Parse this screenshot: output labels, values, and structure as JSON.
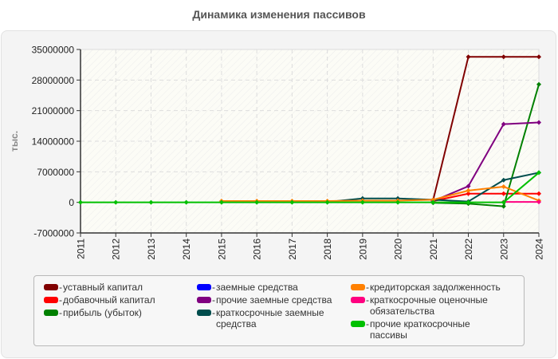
{
  "chart_data": {
    "type": "line",
    "title": "Динамика изменения пассивов",
    "xlabel": "",
    "ylabel": "тыс.",
    "ylim": [
      -7000000,
      35000000
    ],
    "yticks": [
      35000000,
      28000000,
      21000000,
      14000000,
      7000000,
      0,
      -7000000
    ],
    "ytick_labels": [
      "35000000",
      "28000000",
      "21000000",
      "14000000",
      "7000000",
      "0",
      "-7000000"
    ],
    "grid": true,
    "legend_position": "bottom",
    "x": [
      "2011",
      "2012",
      "2013",
      "2014",
      "2015",
      "2016",
      "2017",
      "2018",
      "2019",
      "2020",
      "2021",
      "2022",
      "2023",
      "2024"
    ],
    "series": [
      {
        "name": "уставный капитал",
        "color": "#800000",
        "values": [
          null,
          null,
          null,
          null,
          null,
          null,
          null,
          null,
          null,
          null,
          500000,
          33300000,
          33300000,
          33300000
        ]
      },
      {
        "name": "добавочный капитал",
        "color": "#ff0000",
        "values": [
          null,
          null,
          null,
          null,
          null,
          null,
          null,
          null,
          null,
          null,
          300000,
          2000000,
          2000000,
          2000000
        ]
      },
      {
        "name": "прибыль (убыток)",
        "color": "#008000",
        "values": [
          null,
          null,
          null,
          null,
          null,
          null,
          null,
          null,
          null,
          null,
          -100000,
          -300000,
          -900000,
          27000000
        ]
      },
      {
        "name": "заемные средства",
        "color": "#0000ff",
        "values": [
          null,
          null,
          null,
          null,
          null,
          null,
          null,
          null,
          null,
          null,
          null,
          null,
          null,
          null
        ]
      },
      {
        "name": "прочие заемные средства",
        "color": "#800080",
        "values": [
          null,
          null,
          null,
          null,
          null,
          null,
          null,
          null,
          null,
          null,
          300000,
          3700000,
          17900000,
          18300000
        ]
      },
      {
        "name": "краткосрочные заемные средства",
        "color": "#004d4d",
        "values": [
          null,
          null,
          null,
          null,
          null,
          null,
          null,
          100000,
          900000,
          900000,
          600000,
          200000,
          5100000,
          6800000
        ]
      },
      {
        "name": "кредиторская задолженность",
        "color": "#ff8000",
        "values": [
          null,
          null,
          null,
          null,
          300000,
          300000,
          300000,
          300000,
          400000,
          400000,
          600000,
          2700000,
          3600000,
          400000
        ]
      },
      {
        "name": "краткосрочные оценочные обязательства",
        "color": "#ff0080",
        "values": [
          null,
          null,
          null,
          null,
          null,
          null,
          null,
          null,
          null,
          null,
          null,
          null,
          100000,
          100000
        ]
      },
      {
        "name": "прочие краткосрочные пассивы",
        "color": "#00c000",
        "values": [
          0,
          0,
          0,
          0,
          0,
          0,
          0,
          0,
          0,
          0,
          0,
          0,
          0,
          6800000
        ]
      }
    ]
  },
  "legend": {
    "items": [
      {
        "label": "уставный капитал",
        "color": "#800000"
      },
      {
        "label": "добавочный капитал",
        "color": "#ff0000"
      },
      {
        "label": "прибыль (убыток)",
        "color": "#008000"
      },
      {
        "label": "заемные средства",
        "color": "#0000ff"
      },
      {
        "label": "прочие заемные средства",
        "color": "#800080"
      },
      {
        "label": "краткосрочные заемные средства",
        "color": "#004d4d"
      },
      {
        "label": "кредиторская задолженность",
        "color": "#ff8000"
      },
      {
        "label": "краткосрочные оценочные обязательства",
        "color": "#ff0080"
      },
      {
        "label": "прочие краткосрочные пассивы",
        "color": "#00c000"
      }
    ],
    "dash": "-"
  }
}
